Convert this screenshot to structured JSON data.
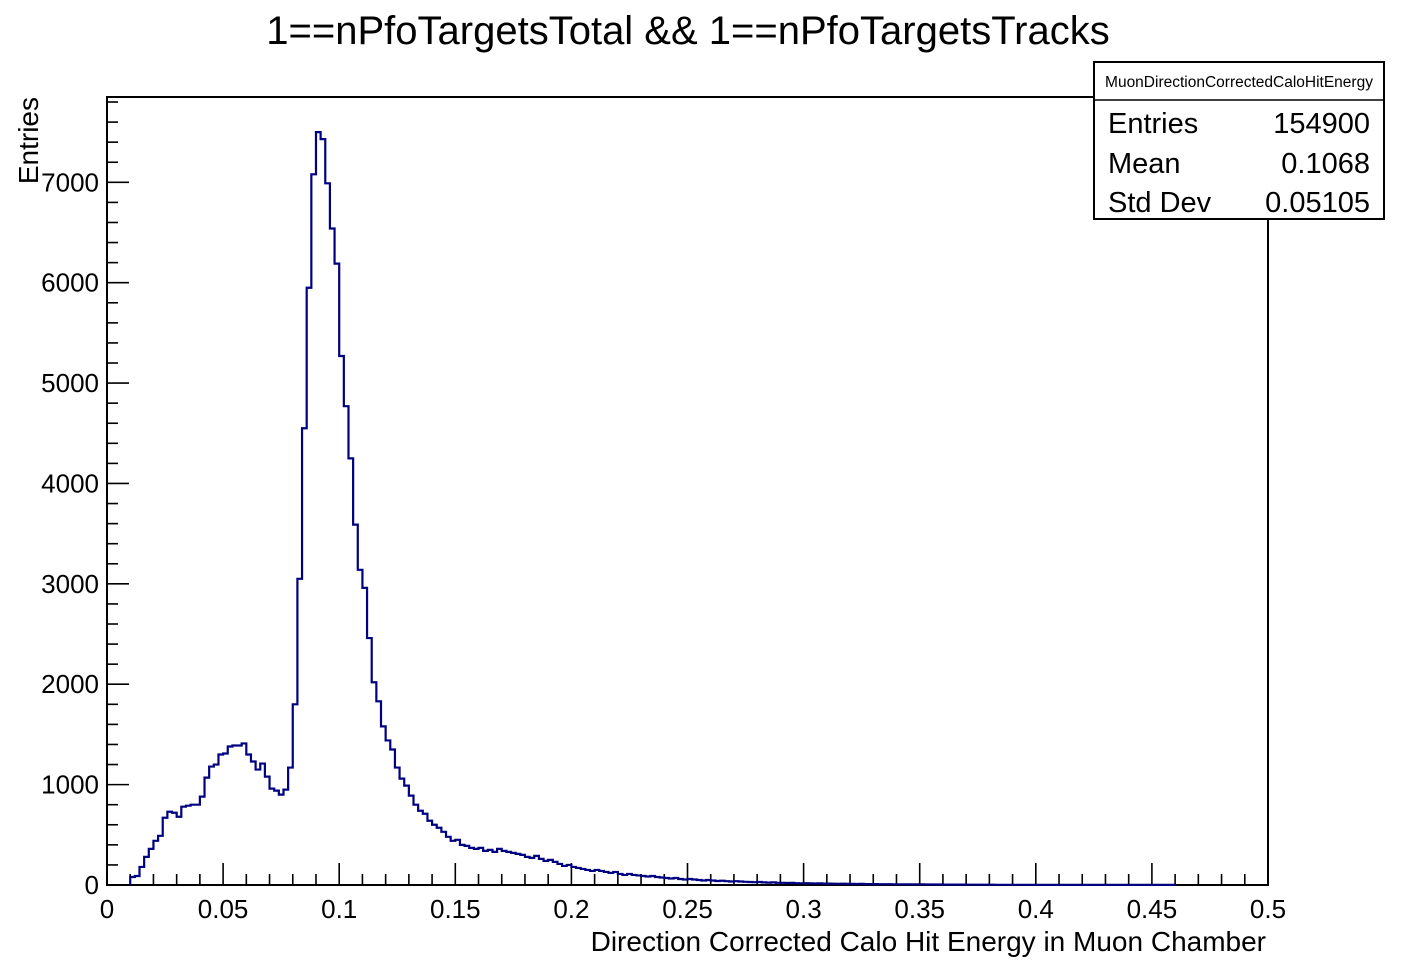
{
  "chart_data": {
    "type": "histogram",
    "title": "1==nPfoTargetsTotal && 1==nPfoTargetsTracks",
    "xlabel": "Direction Corrected Calo Hit Energy in Muon Chamber",
    "ylabel": "Entries",
    "xlim": [
      0,
      0.5
    ],
    "ylim": [
      0,
      7850
    ],
    "x_ticks": [
      0,
      0.05,
      0.1,
      0.15,
      0.2,
      0.25,
      0.3,
      0.35,
      0.4,
      0.45,
      0.5
    ],
    "x_tick_labels": [
      "0",
      "0.05",
      "0.1",
      "0.15",
      "0.2",
      "0.25",
      "0.3",
      "0.35",
      "0.4",
      "0.45",
      "0.5"
    ],
    "y_ticks": [
      0,
      1000,
      2000,
      3000,
      4000,
      5000,
      6000,
      7000
    ],
    "y_tick_labels": [
      "0",
      "1000",
      "2000",
      "3000",
      "4000",
      "5000",
      "6000",
      "7000"
    ],
    "line_color": "#000080",
    "bins": {
      "x_start": 0.01,
      "bin_width": 0.002,
      "values": [
        80,
        90,
        180,
        280,
        360,
        440,
        490,
        670,
        730,
        720,
        680,
        780,
        790,
        800,
        800,
        880,
        1070,
        1180,
        1200,
        1300,
        1310,
        1380,
        1390,
        1390,
        1410,
        1300,
        1230,
        1150,
        1210,
        1080,
        960,
        940,
        900,
        950,
        1170,
        1800,
        3050,
        4550,
        5950,
        7080,
        7500,
        7430,
        6990,
        6540,
        6190,
        5270,
        4770,
        4250,
        3590,
        3140,
        2960,
        2460,
        2020,
        1830,
        1580,
        1440,
        1350,
        1170,
        1060,
        990,
        890,
        800,
        740,
        710,
        640,
        600,
        570,
        530,
        480,
        440,
        450,
        400,
        390,
        370,
        360,
        370,
        340,
        350,
        330,
        360,
        340,
        330,
        320,
        310,
        300,
        280,
        270,
        290,
        260,
        240,
        250,
        230,
        210,
        190,
        200,
        180,
        170,
        160,
        150,
        140,
        150,
        140,
        130,
        120,
        130,
        110,
        100,
        110,
        100,
        95,
        90,
        85,
        90,
        80,
        75,
        70,
        65,
        70,
        60,
        55,
        60,
        55,
        50,
        45,
        50,
        45,
        40,
        42,
        38,
        35,
        38,
        35,
        32,
        30,
        28,
        30,
        26,
        24,
        26,
        22,
        22,
        20,
        21,
        18,
        17,
        18,
        16,
        15,
        16,
        14,
        14,
        13,
        12,
        13,
        11,
        11,
        10,
        11,
        9,
        9,
        9,
        8,
        8,
        8,
        7,
        7,
        7,
        6,
        6,
        6,
        6,
        5,
        5,
        5,
        5,
        4,
        4,
        4,
        4,
        4,
        3,
        3,
        3,
        3,
        3,
        3,
        2,
        2,
        2,
        2,
        2,
        2,
        2,
        2,
        2,
        1,
        1,
        1,
        1,
        1,
        1,
        1,
        1,
        1,
        1,
        1,
        1,
        1,
        1,
        1,
        1,
        1,
        1,
        1,
        1,
        1,
        1,
        1,
        1,
        1,
        1,
        1,
        1,
        1,
        1
      ]
    },
    "stats_box": {
      "name": "MuonDirectionCorrectedCaloHitEnergy",
      "rows": [
        {
          "label": "Entries",
          "value": "154900"
        },
        {
          "label": "Mean",
          "value": "0.1068"
        },
        {
          "label": "Std Dev",
          "value": "0.05105"
        }
      ]
    }
  }
}
